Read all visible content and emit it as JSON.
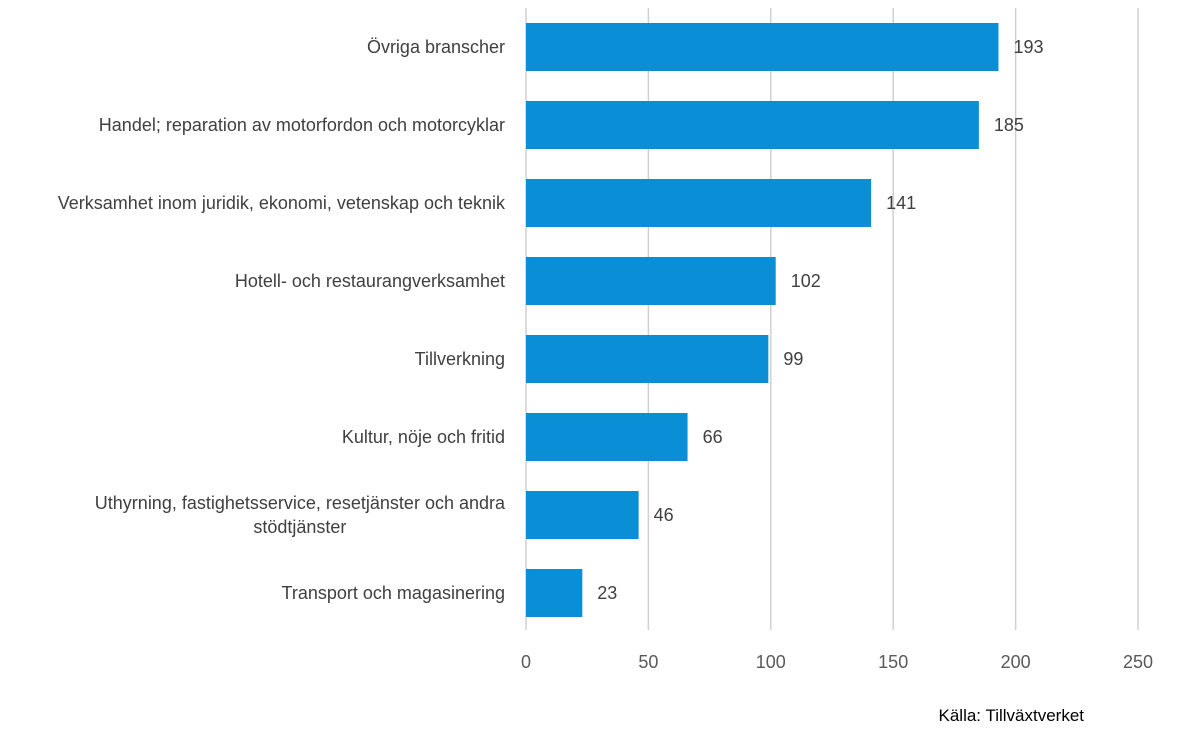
{
  "chart_data": {
    "type": "bar",
    "orientation": "horizontal",
    "categories": [
      "Övriga branscher",
      "Handel; reparation av motorfordon och motorcyklar",
      "Verksamhet inom juridik, ekonomi, vetenskap och teknik",
      "Hotell- och restaurangverksamhet",
      "Tillverkning",
      "Kultur, nöje och fritid",
      "Uthyrning, fastighetsservice, resetjänster och andra stödtjänster",
      "Transport och magasinering"
    ],
    "values": [
      193,
      185,
      141,
      102,
      99,
      66,
      46,
      23
    ],
    "xlim": [
      0,
      250
    ],
    "xticks": [
      0,
      50,
      100,
      150,
      200,
      250
    ],
    "grid": "vertical",
    "bar_color": "#0a8ed6",
    "gridline_color": "#d0d0d0",
    "data_labels": true
  },
  "source_note": "Källa: Tillväxtverket"
}
